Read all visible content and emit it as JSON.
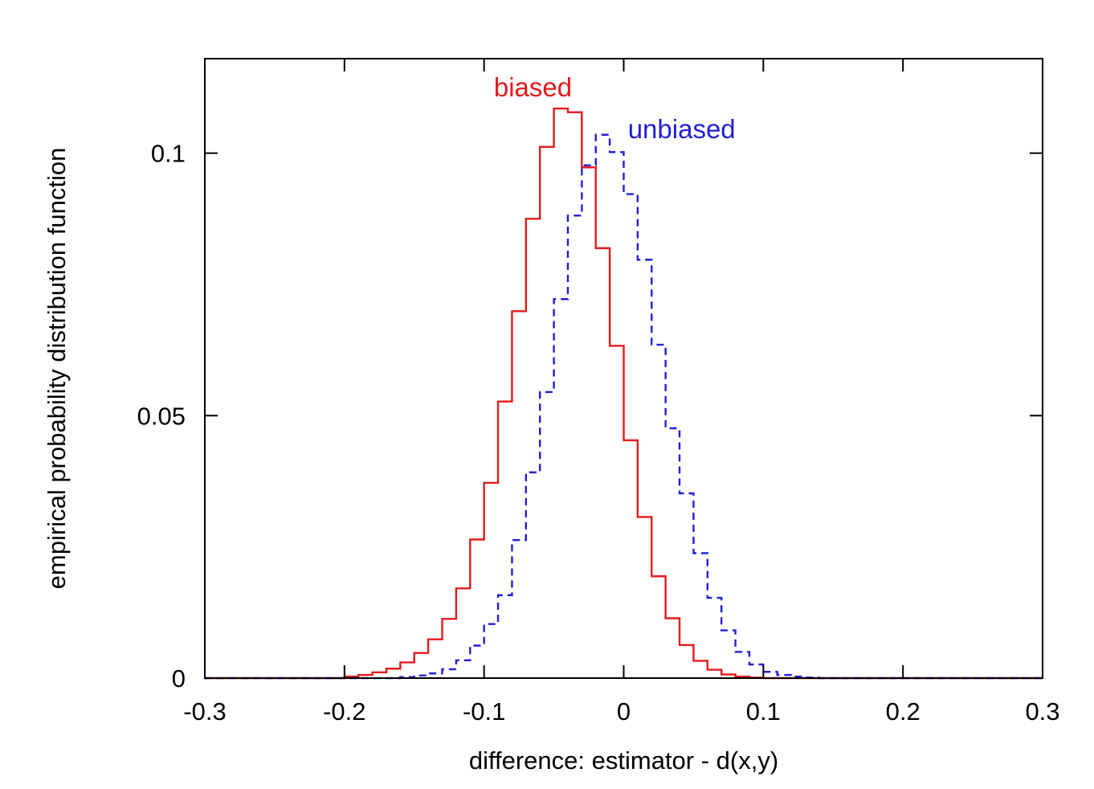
{
  "chart_data": {
    "type": "line",
    "title": "",
    "xlabel": "difference: estimator - d(x,y)",
    "ylabel": "empirical probability distribution function",
    "xlim": [
      -0.3,
      0.3
    ],
    "ylim": [
      0,
      0.118
    ],
    "xticks": [
      -0.3,
      -0.2,
      -0.1,
      0,
      0.1,
      0.2,
      0.3
    ],
    "xtick_labels": [
      "-0.3",
      "-0.2",
      "-0.1",
      "0",
      "0.1",
      "0.2",
      "0.3"
    ],
    "yticks": [
      0,
      0.05,
      0.1
    ],
    "ytick_labels": [
      "0",
      "0.05",
      "0.1"
    ],
    "grid": false,
    "legend": "none",
    "bin_width": 0.01,
    "x_bin_starts": [
      -0.3,
      -0.29,
      -0.28,
      -0.27,
      -0.26,
      -0.25,
      -0.24,
      -0.23,
      -0.22,
      -0.21,
      -0.2,
      -0.19,
      -0.18,
      -0.17,
      -0.16,
      -0.15,
      -0.14,
      -0.13,
      -0.12,
      -0.11,
      -0.1,
      -0.09,
      -0.08,
      -0.07,
      -0.06,
      -0.05,
      -0.04,
      -0.03,
      -0.02,
      -0.01,
      0,
      0.01,
      0.02,
      0.03,
      0.04,
      0.05,
      0.06,
      0.07,
      0.08,
      0.09,
      0.1,
      0.11,
      0.12,
      0.13,
      0.14,
      0.15,
      0.16,
      0.17,
      0.18,
      0.19,
      0.2,
      0.21,
      0.22,
      0.23,
      0.24,
      0.25,
      0.26,
      0.27,
      0.28,
      0.29
    ],
    "series": [
      {
        "name": "biased",
        "color": "#e31a1c",
        "style": "solid",
        "values": [
          0,
          0,
          0,
          0,
          0,
          0,
          0,
          0,
          0,
          0,
          0.0003,
          0.0006,
          0.0011,
          0.0018,
          0.003,
          0.0048,
          0.0074,
          0.0113,
          0.0171,
          0.0264,
          0.0372,
          0.0527,
          0.0699,
          0.0875,
          0.1012,
          0.1085,
          0.1078,
          0.0973,
          0.0819,
          0.0633,
          0.0453,
          0.0307,
          0.0194,
          0.0114,
          0.0063,
          0.0033,
          0.0016,
          0.0007,
          0.0003,
          0.0001,
          0,
          0,
          0,
          0,
          0,
          0,
          0,
          0,
          0,
          0,
          0,
          0,
          0,
          0,
          0,
          0,
          0,
          0,
          0,
          0
        ]
      },
      {
        "name": "unbiased",
        "color": "#1f1fd6",
        "style": "dashed",
        "values": [
          0,
          0,
          0,
          0,
          0,
          0,
          0,
          0,
          0,
          0,
          0,
          0,
          0,
          0,
          0.0002,
          0.0005,
          0.0009,
          0.0017,
          0.0034,
          0.0062,
          0.0103,
          0.0158,
          0.0263,
          0.0392,
          0.0545,
          0.0722,
          0.0881,
          0.0977,
          0.1035,
          0.1002,
          0.0922,
          0.0797,
          0.0635,
          0.0476,
          0.0352,
          0.0238,
          0.0153,
          0.0091,
          0.005,
          0.0026,
          0.0012,
          0.0006,
          0.0003,
          0.0001,
          0,
          0,
          0,
          0,
          0,
          0,
          0,
          0,
          0,
          0,
          0,
          0,
          0,
          0,
          0,
          0
        ]
      }
    ]
  }
}
